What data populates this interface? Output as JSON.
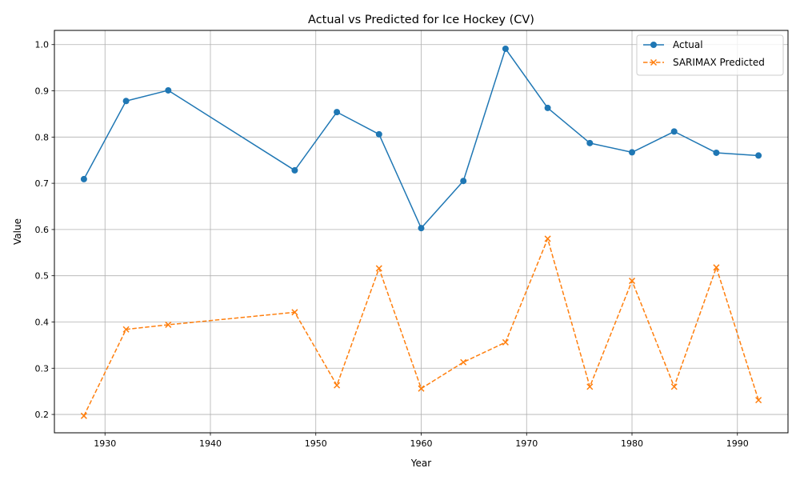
{
  "chart_data": {
    "type": "line",
    "title": "Actual vs Predicted for Ice Hockey (CV)",
    "xlabel": "Year",
    "ylabel": "Value",
    "x": [
      1928,
      1932,
      1936,
      1948,
      1952,
      1956,
      1960,
      1964,
      1968,
      1972,
      1976,
      1980,
      1984,
      1988,
      1992
    ],
    "series": [
      {
        "name": "Actual",
        "color": "#1f77b4",
        "line_style": "solid",
        "marker": "circle",
        "values": [
          0.709,
          0.878,
          0.901,
          0.728,
          0.854,
          0.806,
          0.603,
          0.705,
          0.991,
          0.863,
          0.787,
          0.767,
          0.812,
          0.766,
          0.76
        ]
      },
      {
        "name": "SARIMAX Predicted",
        "color": "#ff7f0e",
        "line_style": "dashed",
        "marker": "x",
        "values": [
          0.197,
          0.384,
          0.394,
          0.421,
          0.263,
          0.516,
          0.256,
          0.313,
          0.356,
          0.58,
          0.26,
          0.489,
          0.26,
          0.518,
          0.231
        ]
      }
    ],
    "xlim": [
      1925.2,
      1994.8
    ],
    "ylim": [
      0.1603,
      1.0307
    ],
    "x_ticks": [
      1930,
      1940,
      1950,
      1960,
      1970,
      1980,
      1990
    ],
    "y_ticks": [
      0.2,
      0.3,
      0.4,
      0.5,
      0.6,
      0.7,
      0.8,
      0.9,
      1.0
    ],
    "x_tick_labels": [
      "1930",
      "1940",
      "1950",
      "1960",
      "1970",
      "1980",
      "1990"
    ],
    "y_tick_labels": [
      "0.2",
      "0.3",
      "0.4",
      "0.5",
      "0.6",
      "0.7",
      "0.8",
      "0.9",
      "1.0"
    ],
    "grid": true,
    "legend_position": "top-right"
  }
}
